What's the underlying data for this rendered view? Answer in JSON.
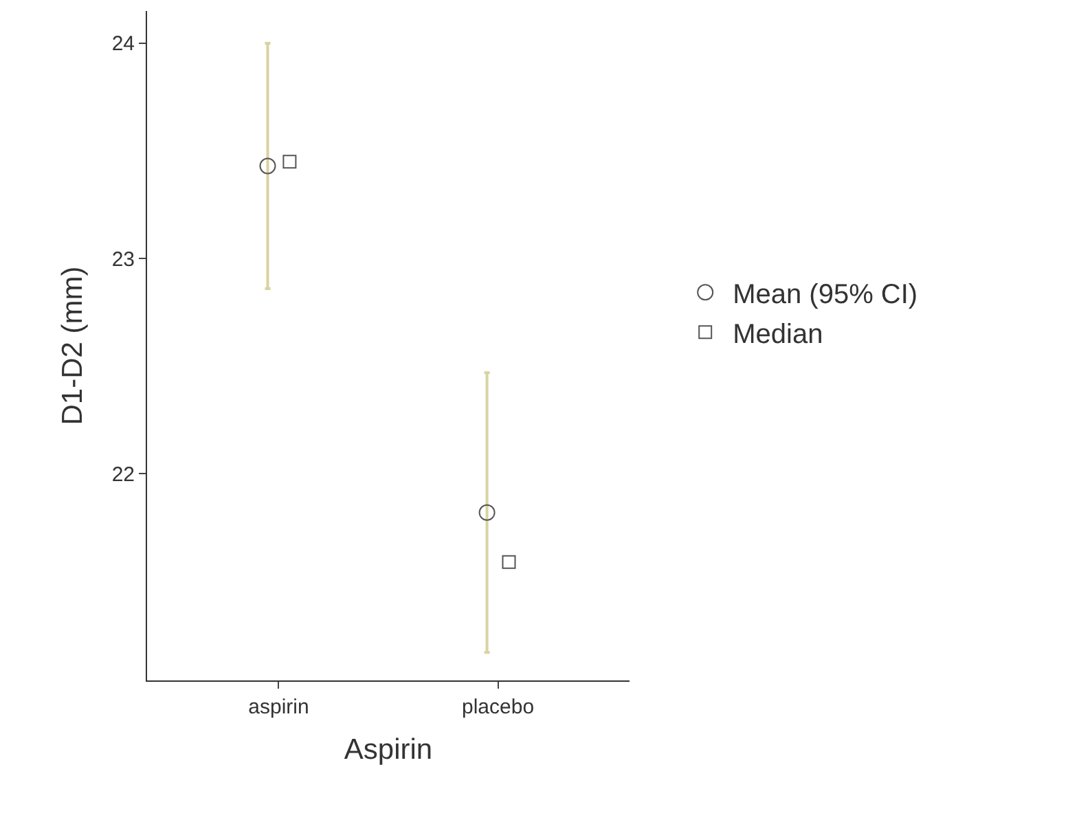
{
  "chart_data": {
    "type": "scatter",
    "xlabel": "Aspirin",
    "ylabel": "D1-D2 (mm)",
    "categories": [
      "aspirin",
      "placebo"
    ],
    "series": [
      {
        "name": "Mean (95% CI)",
        "color": "#555555",
        "marker": "circle",
        "values": [
          23.43,
          21.82
        ],
        "errors": [
          [
            22.86,
            24.0
          ],
          [
            21.17,
            22.47
          ]
        ]
      },
      {
        "name": "Median",
        "color": "#555555",
        "marker": "square",
        "values": [
          23.45,
          21.59
        ]
      }
    ],
    "ylim": [
      21.04,
      24.15
    ],
    "yticks": [
      22,
      23,
      24
    ],
    "legend": "right"
  }
}
